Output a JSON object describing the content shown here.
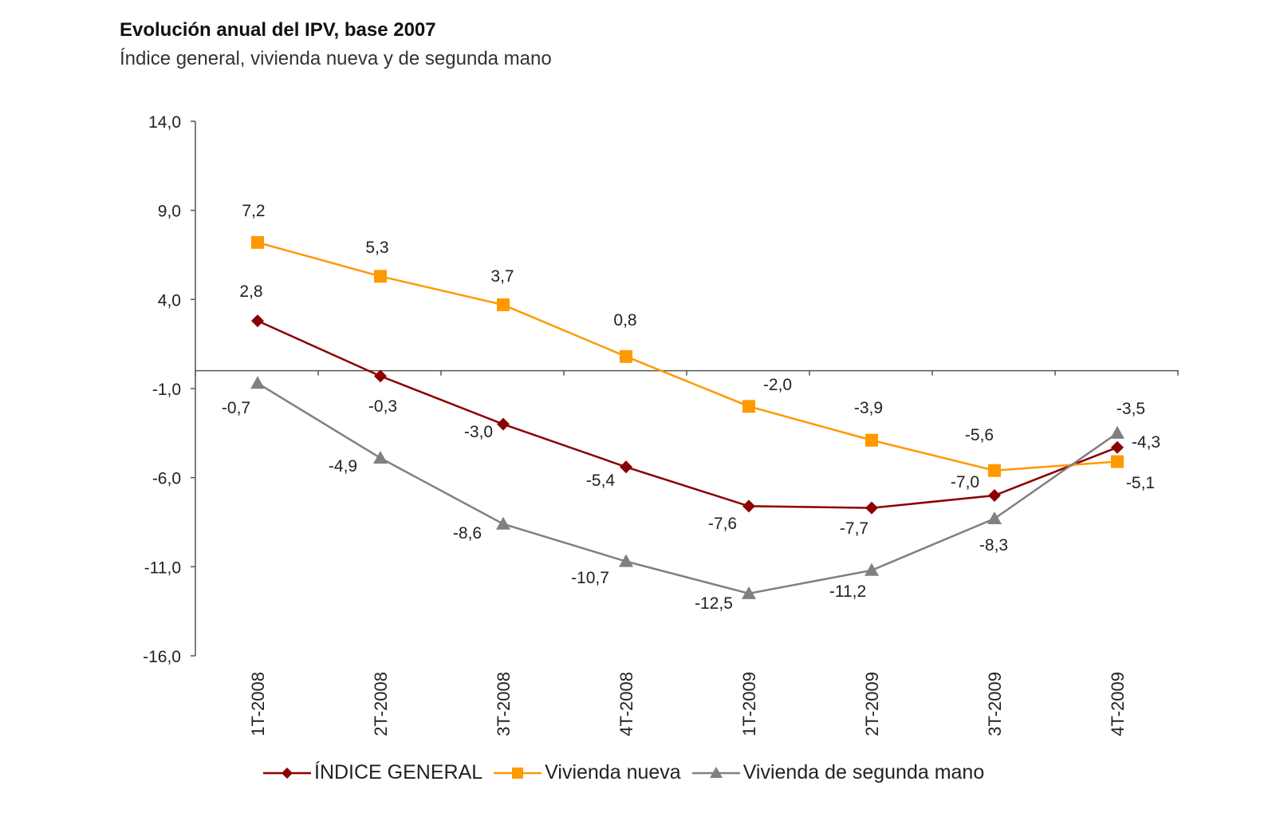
{
  "chart_data": {
    "type": "line",
    "title": "Evolución anual del IPV, base 2007",
    "subtitle": "Índice general, vivienda nueva y de segunda mano",
    "categories": [
      "1T-2008",
      "2T-2008",
      "3T-2008",
      "4T-2008",
      "1T-2009",
      "2T-2009",
      "3T-2009",
      "4T-2009"
    ],
    "ylim": [
      -16,
      14
    ],
    "yticks": [
      14,
      9,
      4,
      -1,
      -6,
      -11,
      -16
    ],
    "ytick_labels": [
      "14,0",
      "9,0",
      "4,0",
      "-1,0",
      "-6,0",
      "-11,0",
      "-16,0"
    ],
    "grid": false,
    "legend_position": "bottom",
    "series": [
      {
        "name": "ÍNDICE GENERAL",
        "color": "#8B0000",
        "marker": "diamond",
        "values": [
          2.8,
          -0.3,
          -3.0,
          -5.4,
          -7.6,
          -7.7,
          -7.0,
          -4.3
        ],
        "labels": [
          "2,8",
          "-0,3",
          "-3,0",
          "-5,4",
          "-7,6",
          "-7,7",
          "-7,0",
          "-4,3"
        ]
      },
      {
        "name": "Vivienda nueva",
        "color": "#FF9900",
        "marker": "square",
        "values": [
          7.2,
          5.3,
          3.7,
          0.8,
          -2.0,
          -3.9,
          -5.6,
          -5.1
        ],
        "labels": [
          "7,2",
          "5,3",
          "3,7",
          "0,8",
          "-2,0",
          "-3,9",
          "-5,6",
          "-5,1"
        ]
      },
      {
        "name": "Vivienda de segunda mano",
        "color": "#808080",
        "marker": "triangle",
        "values": [
          -0.7,
          -4.9,
          -8.6,
          -10.7,
          -12.5,
          -11.2,
          -8.3,
          -3.5
        ],
        "labels": [
          "-0,7",
          "-4,9",
          "-8,6",
          "-10,7",
          "-12,5",
          "-11,2",
          "-8,3",
          "-3,5"
        ]
      }
    ]
  }
}
